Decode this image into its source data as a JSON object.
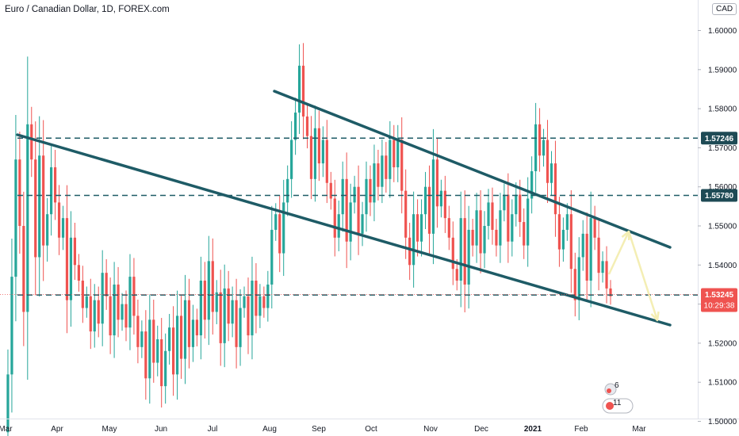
{
  "header": {
    "symbol_title": "Euro / Canadian Dollar, 1D, FOREX.com",
    "currency": "CAD"
  },
  "colors": {
    "up": "#26a69a",
    "down": "#ef5350",
    "trendline": "#1e5b66",
    "level_line": "#1e5b66",
    "arrow": "#f4eeb4",
    "last_price_bg": "#ef5350",
    "level_label_bg": "#1e4a55"
  },
  "chart_data": {
    "type": "candlestick",
    "title": "Euro / Canadian Dollar, 1D, FOREX.com",
    "x_tick_labels": [
      "Mar",
      "Apr",
      "May",
      "Jun",
      "Jul",
      "Aug",
      "Sep",
      "Oct",
      "Nov",
      "Dec",
      "2021",
      "Feb",
      "Mar"
    ],
    "y_tick_labels": [
      "1.50000",
      "1.51000",
      "1.52000",
      "1.53000",
      "1.54000",
      "1.55000",
      "1.56000",
      "1.57000",
      "1.58000",
      "1.59000",
      "1.60000"
    ],
    "ylim": [
      1.4935,
      1.6033
    ],
    "grid": false,
    "levels": [
      {
        "label": "1.57246",
        "value": 1.57246
      },
      {
        "label": "1.55780",
        "value": 1.5578
      },
      {
        "label": "1.53233",
        "value": 1.53233
      }
    ],
    "last_price": {
      "value": "1.53245",
      "countdown": "10:29:38"
    },
    "closes_approx": [
      1.4972,
      1.512,
      1.537,
      1.567,
      1.55,
      1.528,
      1.576,
      1.567,
      1.542,
      1.568,
      1.545,
      1.553,
      1.565,
      1.556,
      1.547,
      1.552,
      1.531,
      1.547,
      1.54,
      1.536,
      1.529,
      1.532,
      1.523,
      1.531,
      1.525,
      1.538,
      1.532,
      1.522,
      1.535,
      1.526,
      1.53,
      1.524,
      1.537,
      1.527,
      1.519,
      1.523,
      1.511,
      1.526,
      1.515,
      1.521,
      1.509,
      1.518,
      1.524,
      1.512,
      1.527,
      1.516,
      1.531,
      1.519,
      1.526,
      1.522,
      1.536,
      1.526,
      1.541,
      1.528,
      1.533,
      1.52,
      1.534,
      1.525,
      1.531,
      1.519,
      1.529,
      1.532,
      1.522,
      1.536,
      1.527,
      1.532,
      1.529,
      1.535,
      1.549,
      1.553,
      1.543,
      1.556,
      1.562,
      1.572,
      1.579,
      1.591,
      1.578,
      1.573,
      1.562,
      1.575,
      1.566,
      1.572,
      1.561,
      1.557,
      1.547,
      1.553,
      1.562,
      1.546,
      1.556,
      1.56,
      1.548,
      1.553,
      1.562,
      1.556,
      1.566,
      1.56,
      1.568,
      1.562,
      1.572,
      1.565,
      1.572,
      1.559,
      1.547,
      1.54,
      1.553,
      1.546,
      1.553,
      1.56,
      1.548,
      1.567,
      1.555,
      1.559,
      1.552,
      1.547,
      1.539,
      1.536,
      1.552,
      1.535,
      1.549,
      1.545,
      1.554,
      1.543,
      1.55,
      1.556,
      1.549,
      1.545,
      1.554,
      1.558,
      1.546,
      1.553,
      1.558,
      1.551,
      1.545,
      1.557,
      1.564,
      1.576,
      1.568,
      1.572,
      1.561,
      1.566,
      1.553,
      1.544,
      1.549,
      1.553,
      1.539,
      1.531,
      1.542,
      1.548,
      1.536,
      1.552,
      1.547,
      1.538,
      1.541,
      1.534,
      1.532
    ]
  },
  "indicators": {
    "badge_top": "6",
    "badge_bottom": "11"
  }
}
